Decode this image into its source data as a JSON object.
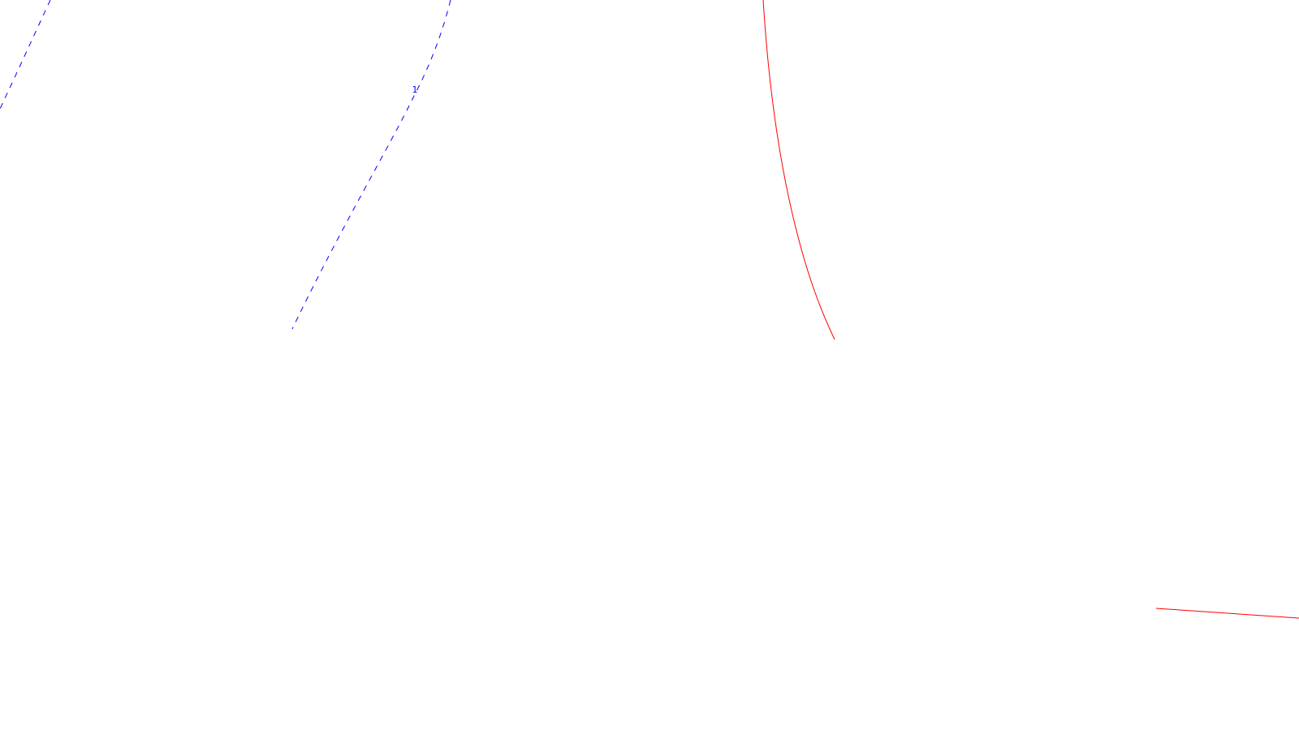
{
  "map": {
    "background_color": "#ffffff",
    "contours": [
      {
        "id": "blue-dashed-1",
        "color": "#0000ff",
        "style": "dashed"
      },
      {
        "id": "blue-dashed-2",
        "color": "#0000ff",
        "style": "dashed",
        "label": "1"
      },
      {
        "id": "red-solid-1",
        "color": "#ff0000",
        "style": "solid"
      },
      {
        "id": "red-solid-2",
        "color": "#ff0000",
        "style": "solid"
      }
    ]
  }
}
